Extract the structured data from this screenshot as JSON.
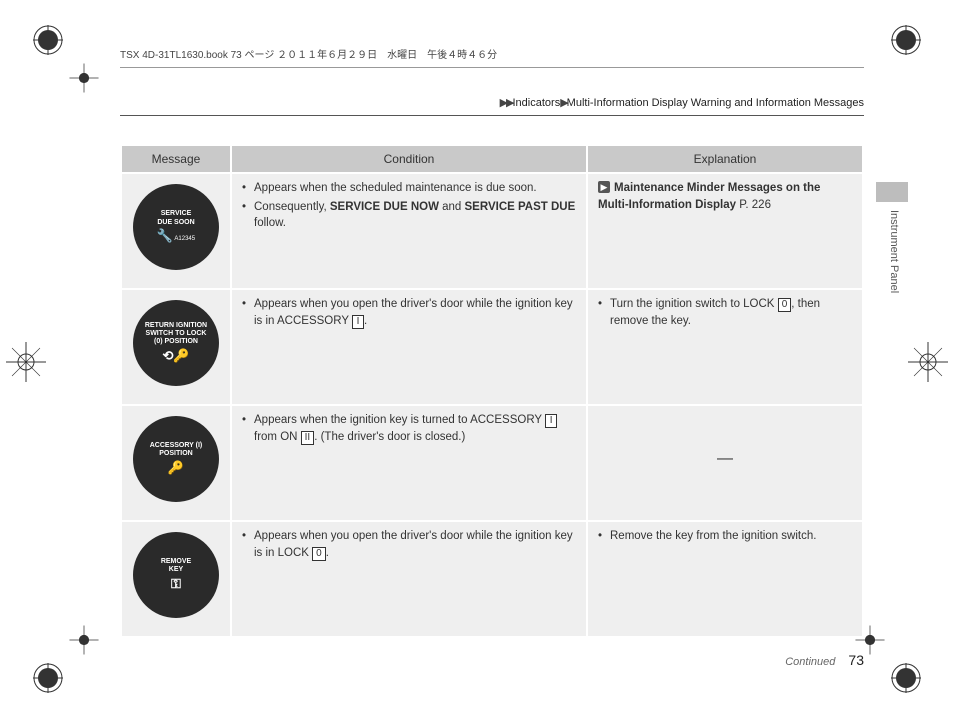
{
  "meta": {
    "header_text": "TSX 4D-31TL1630.book  73 ページ  ２０１１年６月２９日　水曜日　午後４時４６分",
    "breadcrumb_parts": [
      "Indicators",
      "Multi-Information Display Warning and Information Messages"
    ],
    "side_tab": "Instrument Panel",
    "continued": "Continued",
    "page_number": "73"
  },
  "table": {
    "headers": {
      "c1": "Message",
      "c2": "Condition",
      "c3": "Explanation"
    },
    "rows": [
      {
        "msg": {
          "line1": "SERVICE",
          "line2": "DUE SOON",
          "sub": "A12345",
          "icon": "wrench"
        },
        "cond_items": [
          {
            "t": "Appears when the scheduled maintenance is due soon."
          },
          {
            "t": "Consequently, ",
            "bold1": "SERVICE DUE NOW",
            "mid": " and ",
            "bold2": "SERVICE PAST DUE",
            "tail": " follow."
          }
        ],
        "expl": {
          "type": "link",
          "text": "Maintenance Minder Messages on the Multi-Information Display",
          "page": "P. 226"
        }
      },
      {
        "msg": {
          "line1": "RETURN IGNITION",
          "line2": "SWITCH TO LOCK",
          "line3": "(0) POSITION",
          "icon": "key-lock"
        },
        "cond_items": [
          {
            "t": "Appears when you open the driver's door while the ignition key is in ACCESSORY ",
            "key": "I",
            "tail": "."
          }
        ],
        "expl": {
          "type": "bullet",
          "pre": "Turn the ignition switch to LOCK ",
          "key": "0",
          "tail": ", then remove the key."
        }
      },
      {
        "msg": {
          "line1": "ACCESSORY (I)",
          "line2": "POSITION",
          "icon": "key"
        },
        "cond_items": [
          {
            "t": "Appears when the ignition key is turned to ACCESSORY ",
            "key": "I",
            "mid": " from ON ",
            "key2": "II",
            "tail": ". (The driver's door is closed.)"
          }
        ],
        "expl": {
          "type": "dash"
        }
      },
      {
        "msg": {
          "line1": "REMOVE",
          "line2": "KEY",
          "icon": "key-simple"
        },
        "cond_items": [
          {
            "t": "Appears when you open the driver's door while the ignition key is in LOCK ",
            "key": "0",
            "tail": "."
          }
        ],
        "expl": {
          "type": "bullet",
          "pre": "Remove the key from the ignition switch."
        }
      }
    ]
  }
}
